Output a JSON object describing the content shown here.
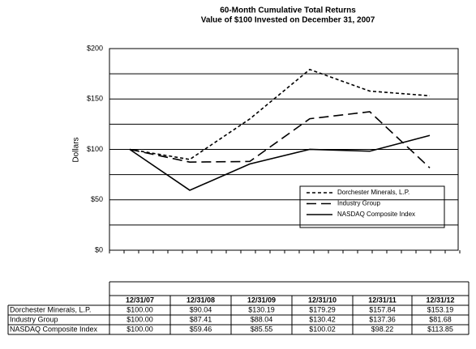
{
  "chart_data": {
    "type": "line",
    "title": "60-Month Cumulative Total Returns",
    "subtitle": "Value of $100 Invested on December 31, 2007",
    "y_label": "Dollars",
    "categories": [
      "12/31/07",
      "12/31/08",
      "12/31/09",
      "12/31/10",
      "12/31/11",
      "12/31/12"
    ],
    "series": [
      {
        "name": "Dorchester Minerals, L.P.",
        "color": "#000000",
        "dash": "short",
        "values": [
          100,
          90.04,
          130.19,
          179.29,
          157.84,
          153.19
        ],
        "value_labels": [
          "$100.00",
          "$90.04",
          "$130.19",
          "$179.29",
          "$157.84",
          "$153.19"
        ]
      },
      {
        "name": "Industry Group",
        "color": "#000000",
        "dash": "long",
        "values": [
          100,
          87.41,
          88.04,
          130.42,
          137.36,
          81.68
        ],
        "value_labels": [
          "$100.00",
          "$87.41",
          "$88.04",
          "$130.42",
          "$137.36",
          "$81.68"
        ]
      },
      {
        "name": "NASDAQ Composite Index",
        "color": "#000000",
        "dash": "solid",
        "values": [
          100,
          59.46,
          85.55,
          100.02,
          98.22,
          113.85
        ],
        "value_labels": [
          "$100.00",
          "$59.46",
          "$85.55",
          "$100.02",
          "$98.22",
          "$113.85"
        ]
      }
    ],
    "ylim": [
      0,
      200
    ],
    "yticks": [
      {
        "value": 0,
        "label": "$0"
      },
      {
        "value": 50,
        "label": "$50"
      },
      {
        "value": 100,
        "label": "$100"
      },
      {
        "value": 150,
        "label": "$150"
      },
      {
        "value": 200,
        "label": "$200"
      }
    ],
    "yminorticks": [
      25,
      75,
      125,
      175
    ],
    "grid": true,
    "legend": "lower-right"
  }
}
